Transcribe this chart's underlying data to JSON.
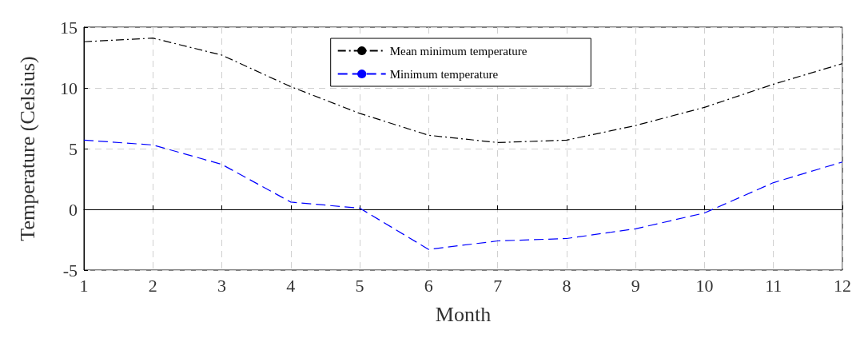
{
  "chart_data": {
    "type": "line",
    "xlabel": "Month",
    "ylabel": "Temperature (Celsius)",
    "x": [
      1,
      2,
      3,
      4,
      5,
      6,
      7,
      8,
      9,
      10,
      11,
      12
    ],
    "series": [
      {
        "name": "Mean minimum temperature",
        "color": "#000000",
        "line_style": "dashdot",
        "values": [
          13.8,
          14.1,
          12.7,
          10.1,
          7.9,
          6.1,
          5.5,
          5.7,
          6.9,
          8.4,
          10.3,
          12.0
        ]
      },
      {
        "name": "Minimum temperature",
        "color": "#0000ff",
        "line_style": "dashed",
        "values": [
          5.7,
          5.3,
          3.7,
          0.6,
          0.1,
          -3.3,
          -2.6,
          -2.4,
          -1.6,
          -0.3,
          2.2,
          3.9
        ]
      }
    ],
    "xlim": [
      1,
      12
    ],
    "xticks": [
      1,
      2,
      3,
      4,
      5,
      6,
      7,
      8,
      9,
      10,
      11,
      12
    ],
    "ylim": [
      -5,
      15
    ],
    "yticks": [
      -5,
      0,
      5,
      10,
      15
    ],
    "grid": true,
    "legend": "top",
    "marker": "none"
  }
}
